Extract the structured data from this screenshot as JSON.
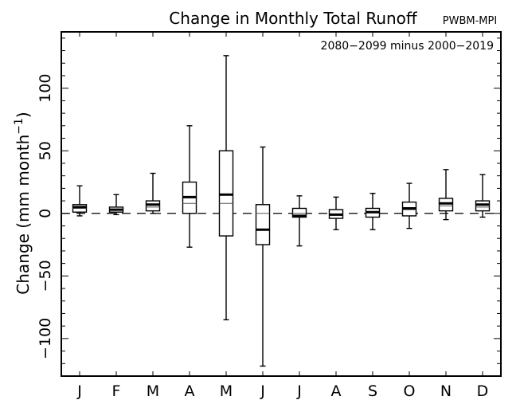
{
  "title": "Change in Monthly Total Runoff",
  "source_label": "PWBM-MPI",
  "period_label": "2080−2099 minus 2000−2019",
  "ylabel_main": "Change (mm month",
  "ylabel_sup": "−1",
  "ylabel_close": ")",
  "chart_data": {
    "type": "box",
    "title": "Change in Monthly Total Runoff",
    "categories": [
      "J",
      "F",
      "M",
      "A",
      "M",
      "J",
      "J",
      "A",
      "S",
      "O",
      "N",
      "D"
    ],
    "ylim": [
      -130,
      145
    ],
    "yticks": [
      -100,
      -50,
      0,
      50,
      100
    ],
    "ytick_labels": [
      "−100",
      "−50",
      "0",
      "50",
      "100"
    ],
    "zero_line": "dashed",
    "boxes": [
      {
        "whisker_low": -2,
        "q1": 1,
        "median": 4,
        "mean": 5,
        "q3": 7,
        "whisker_high": 22
      },
      {
        "whisker_low": -1,
        "q1": 1,
        "median": 3,
        "mean": 3,
        "q3": 5,
        "whisker_high": 15
      },
      {
        "whisker_low": 0,
        "q1": 2,
        "median": 5,
        "mean": 7,
        "q3": 10,
        "whisker_high": 32
      },
      {
        "whisker_low": -27,
        "q1": 0,
        "median": 8,
        "mean": 13,
        "q3": 25,
        "whisker_high": 70
      },
      {
        "whisker_low": -85,
        "q1": -18,
        "median": 8,
        "mean": 15,
        "q3": 50,
        "whisker_high": 126
      },
      {
        "whisker_low": -122,
        "q1": -25,
        "median": 0,
        "mean": -13,
        "q3": 7,
        "whisker_high": 53
      },
      {
        "whisker_low": -26,
        "q1": -3,
        "median": 0,
        "mean": -2,
        "q3": 4,
        "whisker_high": 14
      },
      {
        "whisker_low": -13,
        "q1": -4,
        "median": -1,
        "mean": -1,
        "q3": 3,
        "whisker_high": 13
      },
      {
        "whisker_low": -13,
        "q1": -3,
        "median": 1,
        "mean": 1,
        "q3": 4,
        "whisker_high": 16
      },
      {
        "whisker_low": -12,
        "q1": -2,
        "median": 3,
        "mean": 4,
        "q3": 9,
        "whisker_high": 24
      },
      {
        "whisker_low": -5,
        "q1": 2,
        "median": 6,
        "mean": 8,
        "q3": 12,
        "whisker_high": 35
      },
      {
        "whisker_low": -3,
        "q1": 2,
        "median": 5,
        "mean": 7,
        "q3": 10,
        "whisker_high": 31
      }
    ]
  }
}
